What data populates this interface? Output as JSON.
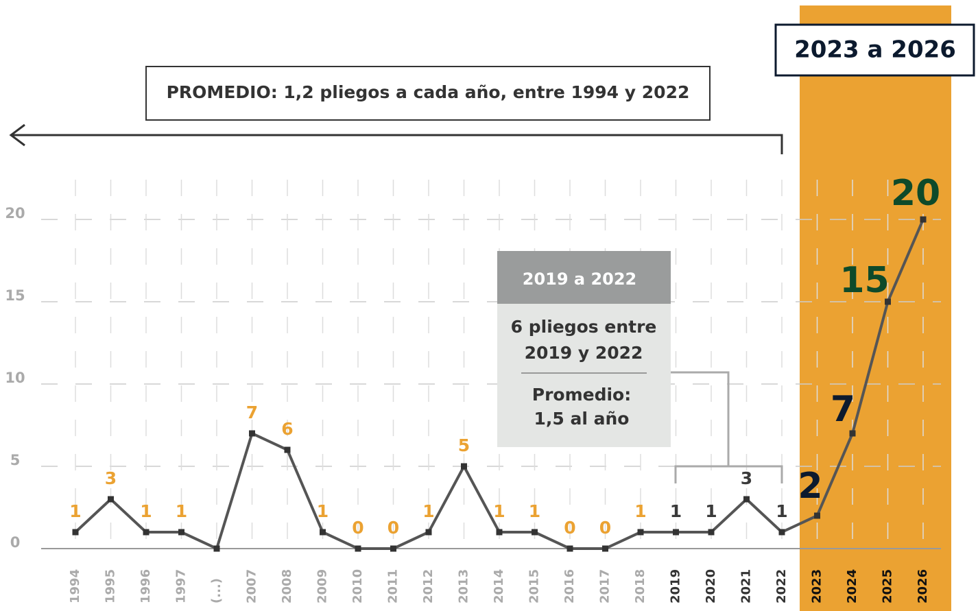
{
  "chart_data": {
    "type": "line",
    "categories": [
      "1994",
      "1995",
      "1996",
      "1997",
      "(...)",
      "2007",
      "2008",
      "2009",
      "2010",
      "2011",
      "2012",
      "2013",
      "2014",
      "2015",
      "2016",
      "2017",
      "2018",
      "2019",
      "2020",
      "2021",
      "2022",
      "2023",
      "2024",
      "2025",
      "2026"
    ],
    "series": [
      {
        "color": "#555555",
        "values": [
          1,
          3,
          1,
          1,
          0,
          7,
          6,
          1,
          0,
          0,
          1,
          5,
          1,
          1,
          0,
          0,
          1,
          1,
          1,
          3,
          1,
          2,
          7,
          15,
          20
        ]
      }
    ],
    "value_labels": [
      "1",
      "3",
      "1",
      "1",
      null,
      "7",
      "6",
      "1",
      "0",
      "0",
      "1",
      "5",
      "1",
      "1",
      "0",
      "0",
      "1",
      "1",
      "1",
      "3",
      "1",
      "2",
      "7",
      "15",
      "20"
    ],
    "label_colors": [
      "#eba232",
      "#eba232",
      "#eba232",
      "#eba232",
      null,
      "#eba232",
      "#eba232",
      "#eba232",
      "#eba232",
      "#eba232",
      "#eba232",
      "#eba232",
      "#eba232",
      "#eba232",
      "#eba232",
      "#eba232",
      "#eba232",
      "#3a3a3a",
      "#3a3a3a",
      "#3a3a3a",
      "#3a3a3a",
      "#0c1a2e",
      "#0c1a2e",
      "#0e4a2a",
      "#0e4a2a"
    ],
    "tick_colors": [
      "#aaaaaa",
      "#aaaaaa",
      "#aaaaaa",
      "#aaaaaa",
      "#aaaaaa",
      "#aaaaaa",
      "#aaaaaa",
      "#aaaaaa",
      "#aaaaaa",
      "#aaaaaa",
      "#aaaaaa",
      "#aaaaaa",
      "#aaaaaa",
      "#aaaaaa",
      "#aaaaaa",
      "#aaaaaa",
      "#aaaaaa",
      "#333333",
      "#333333",
      "#333333",
      "#333333",
      "#111111",
      "#111111",
      "#111111",
      "#111111"
    ],
    "ylim": [
      0,
      22
    ],
    "yticks": [
      0,
      5,
      10,
      15,
      20
    ],
    "grid": true,
    "highlight_color": "#eba232",
    "annotations": {
      "period": "2023 a 2026",
      "average": "PROMEDIO: 1,2 pliegos a cada año, entre 1994 y 2022",
      "box_title": "2019 a 2022",
      "box_line1": [
        "6 pliegos entre",
        "2019 y 2022"
      ],
      "box_line2": [
        "Promedio:",
        "1,5 al año"
      ]
    }
  }
}
